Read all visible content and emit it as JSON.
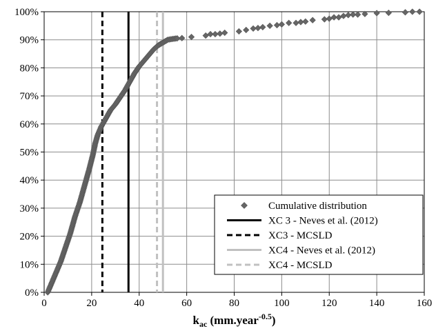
{
  "chart_data": {
    "type": "scatter",
    "title": "",
    "xlabel": "k",
    "xlabel_sub": "ac",
    "xlabel_unit": " (mm.year",
    "xlabel_sup": "-0.5",
    "xlabel_close": ")",
    "ylabel": "",
    "xlim": [
      0,
      160
    ],
    "ylim": [
      0,
      100
    ],
    "x_ticks": [
      "0",
      "20",
      "40",
      "60",
      "80",
      "100",
      "120",
      "140",
      "160"
    ],
    "y_ticks": [
      "0%",
      "10%",
      "20%",
      "30%",
      "40%",
      "50%",
      "60%",
      "70%",
      "80%",
      "90%",
      "100%"
    ],
    "grid": true,
    "legend_position": "bottom-right",
    "legend": [
      "Cumulative distribution",
      "XC 3 - Neves et al. (2012)",
      "XC3 - MCSLD",
      "XC4 - Neves et al. (2012)",
      "XC4 - MCSLD"
    ],
    "vertical_lines": [
      {
        "x": 35.5,
        "color": "#000000",
        "style": "solid"
      },
      {
        "x": 24.5,
        "color": "#000000",
        "style": "dashed"
      },
      {
        "x": 50.0,
        "color": "#c0c0c0",
        "style": "solid"
      },
      {
        "x": 47.5,
        "color": "#c0c0c0",
        "style": "dashed"
      }
    ],
    "series_curve": [
      [
        1.5,
        0
      ],
      [
        2.5,
        2
      ],
      [
        3.5,
        4
      ],
      [
        5,
        7
      ],
      [
        7,
        11
      ],
      [
        9,
        16
      ],
      [
        11,
        21
      ],
      [
        13,
        27
      ],
      [
        15,
        32
      ],
      [
        17,
        38
      ],
      [
        19,
        44
      ],
      [
        20.5,
        49
      ],
      [
        21.5,
        53
      ],
      [
        22.5,
        56
      ],
      [
        24,
        59
      ],
      [
        26,
        62
      ],
      [
        28,
        65
      ],
      [
        30,
        67
      ],
      [
        32,
        69.5
      ],
      [
        34,
        72
      ],
      [
        36,
        75
      ],
      [
        38,
        78
      ],
      [
        40,
        80.5
      ],
      [
        42,
        82.5
      ],
      [
        44,
        84.5
      ],
      [
        46,
        86.5
      ],
      [
        48,
        88
      ],
      [
        50,
        89
      ],
      [
        52,
        90
      ],
      [
        54,
        90.3
      ],
      [
        56,
        90.5
      ]
    ],
    "series_sparse": [
      [
        58,
        90.6
      ],
      [
        62,
        91
      ],
      [
        68,
        91.5
      ],
      [
        70,
        92
      ],
      [
        72,
        92
      ],
      [
        74,
        92.2
      ],
      [
        76,
        92.5
      ],
      [
        82,
        93
      ],
      [
        85,
        93.5
      ],
      [
        88,
        94
      ],
      [
        90,
        94.2
      ],
      [
        92,
        94.5
      ],
      [
        95,
        95
      ],
      [
        98,
        95.2
      ],
      [
        100,
        95.5
      ],
      [
        103,
        96
      ],
      [
        106,
        96
      ],
      [
        108,
        96.3
      ],
      [
        110,
        96.5
      ],
      [
        113,
        97
      ],
      [
        118,
        97.3
      ],
      [
        120,
        97.5
      ],
      [
        122,
        98
      ],
      [
        124,
        98
      ],
      [
        126,
        98.5
      ],
      [
        128,
        98.8
      ],
      [
        130,
        99
      ],
      [
        132,
        99
      ],
      [
        135,
        99.2
      ],
      [
        140,
        99.5
      ],
      [
        145,
        99.6
      ],
      [
        152,
        99.8
      ],
      [
        155,
        100
      ],
      [
        158,
        100
      ]
    ],
    "colors": {
      "marker": "#666666",
      "marker_stroke": "#555555",
      "grid": "#8c8c8c",
      "axis": "#000000"
    }
  }
}
